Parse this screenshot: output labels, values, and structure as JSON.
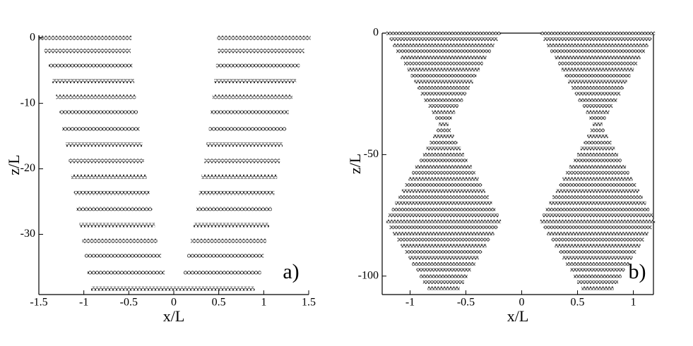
{
  "chart_data": [
    {
      "type": "scatter",
      "xlabel": "x/L",
      "ylabel": "z/L",
      "panel_label": "a)",
      "xlim": [
        -1.5,
        1.5
      ],
      "ylim": [
        -39.2,
        0.4
      ],
      "xticks": [
        -1.5,
        -1,
        -0.5,
        0,
        0.5,
        1,
        1.5
      ],
      "yticks": [
        0,
        -10,
        -20,
        -30
      ],
      "frame": "left-bottom",
      "color": "#000000",
      "z": [
        0,
        -2.0,
        -4.3,
        -6.6,
        -9.0,
        -11.4,
        -13.9,
        -16.3,
        -18.8,
        -21.2,
        -23.7,
        -26.1,
        -28.6,
        -31.0,
        -33.3,
        -35.8,
        -38.3
      ],
      "series": [
        {
          "xmin": [
            -1.48,
            -1.42,
            -1.37,
            -1.33,
            -1.29,
            -1.25,
            -1.22,
            -1.18,
            -1.15,
            -1.12,
            -1.09,
            -1.06,
            -1.03,
            -1.0,
            -0.97,
            -0.94,
            -0.9
          ],
          "xmax": [
            -0.49,
            -0.5,
            -0.48,
            -0.46,
            -0.44,
            -0.42,
            -0.4,
            -0.37,
            -0.35,
            -0.32,
            -0.29,
            -0.26,
            -0.23,
            -0.2,
            -0.16,
            -0.12,
            -0.02
          ]
        },
        {
          "xmin": [
            0.5,
            0.51,
            0.49,
            0.47,
            0.45,
            0.43,
            0.41,
            0.38,
            0.36,
            0.33,
            0.3,
            0.27,
            0.24,
            0.21,
            0.17,
            0.13,
            0.02
          ],
          "xmax": [
            1.5,
            1.43,
            1.38,
            1.34,
            1.3,
            1.26,
            1.23,
            1.19,
            1.16,
            1.13,
            1.1,
            1.07,
            1.04,
            1.01,
            0.98,
            0.95,
            0.88
          ]
        }
      ]
    },
    {
      "type": "scatter",
      "xlabel": "x/L",
      "ylabel": "z/L",
      "panel_label": "b)",
      "xlim": [
        -1.25,
        1.18
      ],
      "ylim": [
        -107.6,
        0
      ],
      "xticks": [
        -1,
        -0.5,
        0,
        0.5,
        1
      ],
      "yticks": [
        0,
        -50,
        -100
      ],
      "frame": "box",
      "color": "#000000",
      "z": [
        0,
        -2.5,
        -5,
        -7.5,
        -10,
        -12.5,
        -15,
        -17.5,
        -20,
        -22.5,
        -25,
        -27.5,
        -30,
        -32.5,
        -35,
        -37.5,
        -40,
        -42.5,
        -45,
        -47.5,
        -50,
        -52.5,
        -55,
        -57.5,
        -60,
        -62.5,
        -65,
        -67.5,
        -70,
        -72.5,
        -75,
        -77.5,
        -80,
        -82.5,
        -85,
        -87.5,
        -90,
        -92.5,
        -95,
        -97.5,
        -100,
        -102.5,
        -105
      ],
      "series": [
        {
          "xmin": [
            -1.2,
            -1.17,
            -1.14,
            -1.11,
            -1.07,
            -1.04,
            -1.01,
            -0.98,
            -0.95,
            -0.92,
            -0.89,
            -0.86,
            -0.82,
            -0.79,
            -0.76,
            -0.73,
            -0.75,
            -0.78,
            -0.81,
            -0.84,
            -0.87,
            -0.9,
            -0.94,
            -0.97,
            -1.0,
            -1.03,
            -1.06,
            -1.09,
            -1.12,
            -1.15,
            -1.18,
            -1.2,
            -1.17,
            -1.14,
            -1.1,
            -1.07,
            -1.03,
            -1.0,
            -0.97,
            -0.93,
            -0.9,
            -0.87,
            -0.83
          ],
          "xmax": [
            -0.2,
            -0.23,
            -0.26,
            -0.29,
            -0.33,
            -0.36,
            -0.39,
            -0.42,
            -0.45,
            -0.48,
            -0.51,
            -0.54,
            -0.58,
            -0.61,
            -0.64,
            -0.67,
            -0.65,
            -0.62,
            -0.59,
            -0.56,
            -0.53,
            -0.5,
            -0.46,
            -0.43,
            -0.4,
            -0.37,
            -0.34,
            -0.31,
            -0.28,
            -0.25,
            -0.22,
            -0.2,
            -0.23,
            -0.26,
            -0.3,
            -0.33,
            -0.37,
            -0.4,
            -0.43,
            -0.47,
            -0.5,
            -0.53,
            -0.57
          ]
        },
        {
          "xmin": [
            0.18,
            0.21,
            0.24,
            0.27,
            0.31,
            0.34,
            0.37,
            0.4,
            0.43,
            0.46,
            0.49,
            0.52,
            0.56,
            0.59,
            0.62,
            0.65,
            0.63,
            0.6,
            0.57,
            0.54,
            0.51,
            0.48,
            0.44,
            0.41,
            0.38,
            0.35,
            0.32,
            0.29,
            0.26,
            0.23,
            0.2,
            0.18,
            0.21,
            0.24,
            0.28,
            0.31,
            0.35,
            0.38,
            0.41,
            0.45,
            0.48,
            0.51,
            0.55
          ],
          "xmax": [
            1.18,
            1.15,
            1.12,
            1.09,
            1.05,
            1.02,
            0.99,
            0.96,
            0.93,
            0.9,
            0.87,
            0.84,
            0.8,
            0.77,
            0.74,
            0.71,
            0.73,
            0.76,
            0.79,
            0.82,
            0.85,
            0.88,
            0.92,
            0.95,
            0.98,
            1.01,
            1.04,
            1.07,
            1.1,
            1.13,
            1.16,
            1.18,
            1.15,
            1.12,
            1.08,
            1.05,
            1.01,
            0.98,
            0.95,
            0.91,
            0.88,
            0.85,
            0.81
          ]
        }
      ]
    }
  ]
}
